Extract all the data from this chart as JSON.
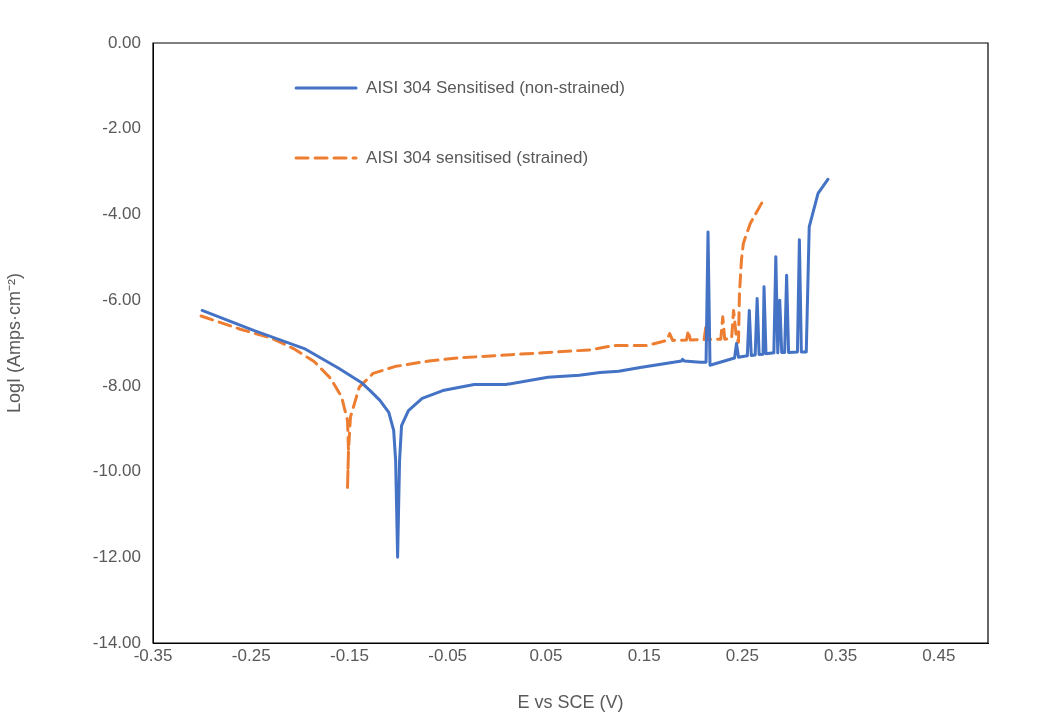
{
  "chart_data": {
    "type": "line",
    "xlabel": "E vs SCE (V)",
    "ylabel": "LogI (Amps·cm⁻²)",
    "xlim": [
      -0.35,
      0.5
    ],
    "ylim": [
      -14,
      0
    ],
    "xticks": [
      {
        "value": -0.35,
        "label": "-0.35"
      },
      {
        "value": -0.25,
        "label": "-0.25"
      },
      {
        "value": -0.15,
        "label": "-0.15"
      },
      {
        "value": -0.05,
        "label": "-0.05"
      },
      {
        "value": 0.05,
        "label": "0.05"
      },
      {
        "value": 0.15,
        "label": "0.15"
      },
      {
        "value": 0.25,
        "label": "0.25"
      },
      {
        "value": 0.35,
        "label": "0.35"
      },
      {
        "value": 0.45,
        "label": "0.45"
      }
    ],
    "yticks": [
      {
        "value": 0,
        "label": "0.00"
      },
      {
        "value": -2,
        "label": "-2.00"
      },
      {
        "value": -4,
        "label": "-4.00"
      },
      {
        "value": -6,
        "label": "-6.00"
      },
      {
        "value": -8,
        "label": "-8.00"
      },
      {
        "value": -10,
        "label": "-10.00"
      },
      {
        "value": -12,
        "label": "-12.00"
      },
      {
        "value": -14,
        "label": "-14.00"
      }
    ],
    "legend": "top",
    "marker": "none",
    "series": [
      {
        "name": "AISI 304 Sensitised (non-strained)",
        "color": "#4472c4",
        "line_style": "solid",
        "x": [
          -0.3,
          -0.247,
          -0.196,
          -0.161,
          -0.138,
          -0.129,
          -0.119,
          -0.11,
          -0.105,
          -0.103,
          -0.101,
          -0.099,
          -0.097,
          -0.09,
          -0.076,
          -0.055,
          -0.023,
          0.009,
          0.052,
          0.084,
          0.105,
          0.124,
          0.146,
          0.188,
          0.189,
          0.191,
          0.207,
          0.213,
          0.215,
          0.217,
          0.242,
          0.244,
          0.246,
          0.255,
          0.257,
          0.259,
          0.263,
          0.265,
          0.267,
          0.271,
          0.272,
          0.274,
          0.282,
          0.284,
          0.286,
          0.288,
          0.29,
          0.293,
          0.295,
          0.297,
          0.306,
          0.308,
          0.31,
          0.315,
          0.318,
          0.327,
          0.337
        ],
        "values": [
          -6.24,
          -6.71,
          -7.13,
          -7.59,
          -7.92,
          -8.11,
          -8.34,
          -8.62,
          -9.04,
          -9.74,
          -12.0,
          -9.74,
          -8.93,
          -8.58,
          -8.29,
          -8.11,
          -7.97,
          -7.97,
          -7.8,
          -7.75,
          -7.69,
          -7.66,
          -7.57,
          -7.42,
          -7.38,
          -7.42,
          -7.45,
          -7.45,
          -4.41,
          -7.52,
          -7.35,
          -7.01,
          -7.33,
          -7.3,
          -6.24,
          -7.29,
          -7.28,
          -5.96,
          -7.27,
          -7.26,
          -5.69,
          -7.25,
          -7.23,
          -4.99,
          -7.23,
          -6.0,
          -7.22,
          -7.22,
          -5.42,
          -7.22,
          -7.21,
          -4.59,
          -7.21,
          -7.21,
          -4.29,
          -3.51,
          -3.18
        ]
      },
      {
        "name": "AISI 304 sensitised (strained)",
        "color": "#ed7d31",
        "line_style": "dashed",
        "x": [
          -0.301,
          -0.261,
          -0.229,
          -0.207,
          -0.186,
          -0.169,
          -0.158,
          -0.152,
          -0.151,
          -0.152,
          -0.151,
          -0.149,
          -0.14,
          -0.126,
          -0.104,
          -0.069,
          -0.04,
          0.095,
          0.119,
          0.153,
          0.173,
          0.176,
          0.179,
          0.193,
          0.195,
          0.197,
          0.211,
          0.213,
          0.215,
          0.228,
          0.23,
          0.232,
          0.239,
          0.241,
          0.244,
          0.246,
          0.247,
          0.249,
          0.251,
          0.258,
          0.272
        ],
        "values": [
          -6.37,
          -6.68,
          -6.89,
          -7.13,
          -7.43,
          -7.83,
          -8.26,
          -8.81,
          -9.51,
          -10.4,
          -9.51,
          -8.73,
          -8.03,
          -7.71,
          -7.55,
          -7.42,
          -7.35,
          -7.16,
          -7.06,
          -7.06,
          -6.94,
          -6.78,
          -6.94,
          -6.93,
          -6.71,
          -6.93,
          -6.92,
          -6.59,
          -6.92,
          -6.91,
          -6.39,
          -6.91,
          -6.9,
          -6.24,
          -6.9,
          -6.98,
          -5.84,
          -5.07,
          -4.67,
          -4.21,
          -3.64
        ]
      }
    ]
  }
}
